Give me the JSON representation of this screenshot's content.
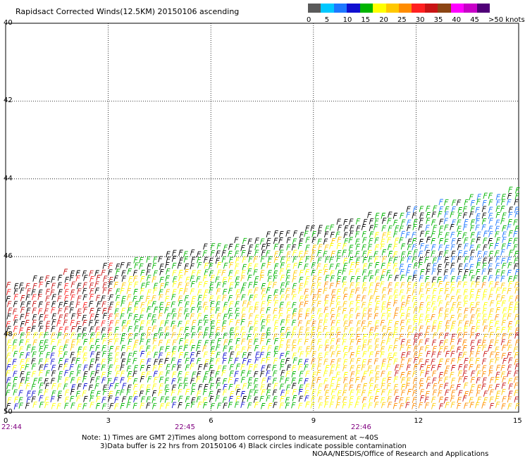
{
  "title": "Rapidsact Corrected Winds(12.5KM) 20150106 ascending",
  "legend": {
    "ticks": [
      "0",
      "5",
      "10",
      "15",
      "20",
      "25",
      "30",
      "35",
      "40",
      "45",
      ">50 knots"
    ],
    "colors": [
      "#5a5a5a",
      "#00c8ff",
      "#1e78ff",
      "#1010d0",
      "#00b400",
      "#ffff00",
      "#ffc800",
      "#ff8c00",
      "#ff2020",
      "#c81414",
      "#8b4513",
      "#ff00ff",
      "#c800c8",
      "#500078"
    ]
  },
  "y_axis": {
    "ticks": [
      "40",
      "42",
      "44",
      "46",
      "48",
      "50"
    ]
  },
  "x_axis": {
    "ticks": [
      "0",
      "3",
      "6",
      "9",
      "12",
      "15"
    ]
  },
  "time_labels": [
    "22:44",
    "22:45",
    "22:46"
  ],
  "notes": {
    "line1": "Note: 1) Times are GMT 2)Times along bottom correspond to measurement at ~40S",
    "line2": "3)Data buffer is 22 hrs from 20150106 4) Black circles indicate possible contamination",
    "line3": "NOAA/NESDIS/Office of Research and Applications"
  }
}
